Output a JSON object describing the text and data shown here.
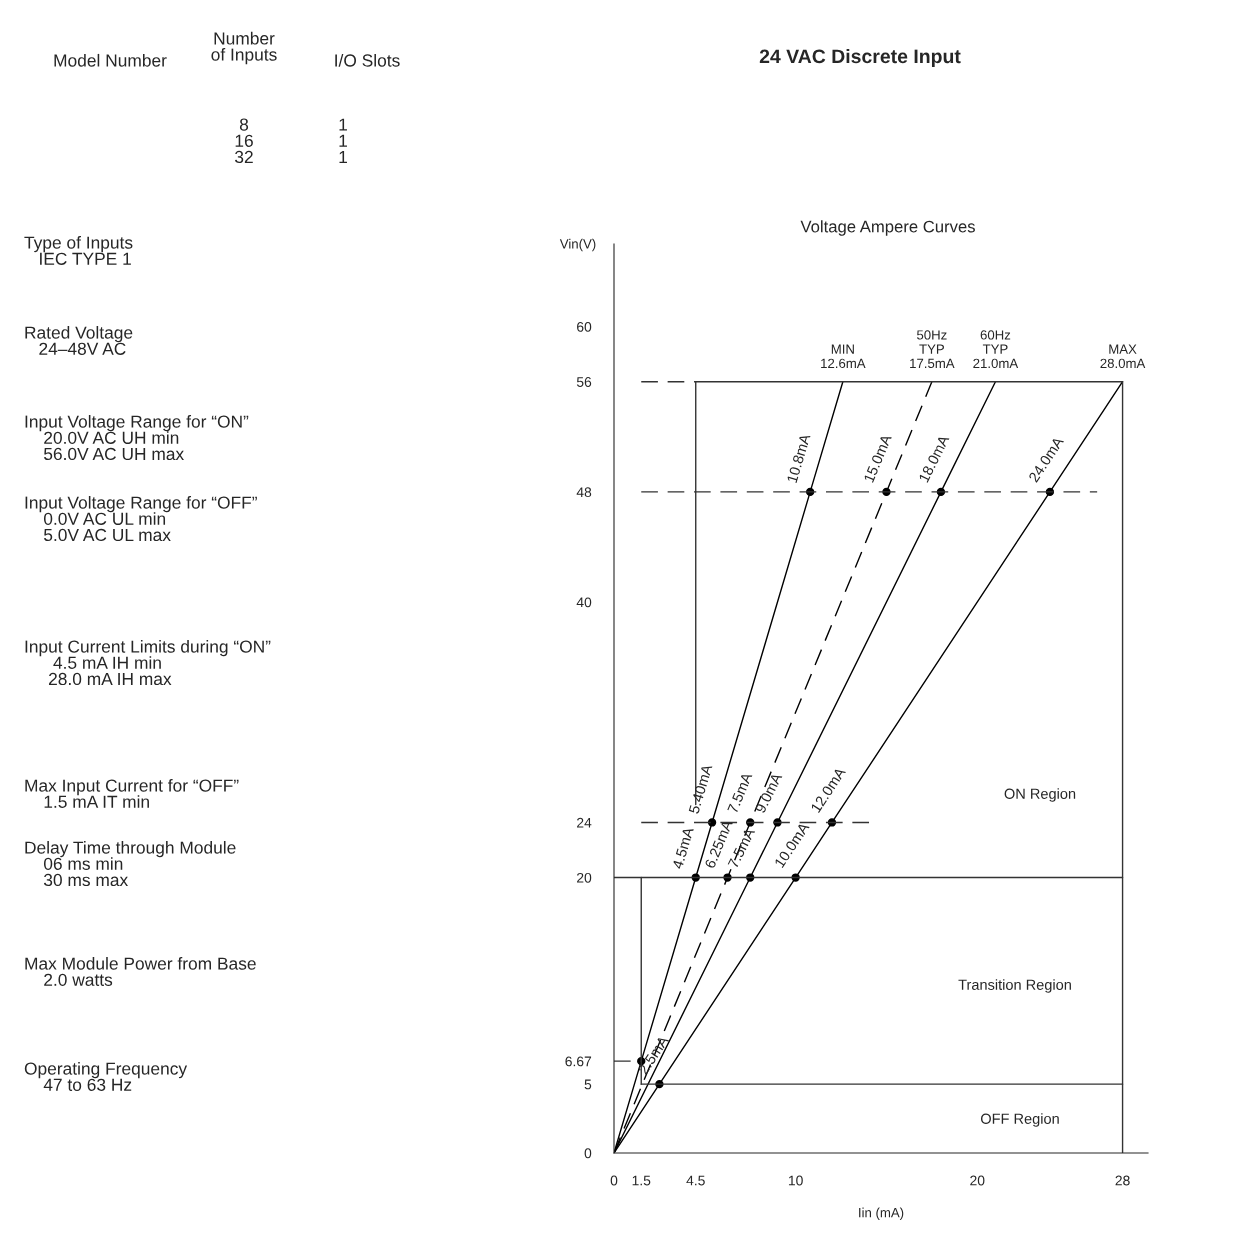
{
  "chart_data": {
    "type": "line",
    "title": "24 VAC Discrete Input",
    "subtitle": "Voltage Ampere Curves",
    "xlabel": "Iin (mA)",
    "ylabel": "Vin(V)",
    "xlim": [
      0,
      29.4
    ],
    "ylim": [
      0,
      66
    ],
    "xticks": [
      0,
      1.5,
      4.5,
      10,
      20,
      28
    ],
    "yticks": [
      0,
      5,
      6.67,
      20,
      24,
      40,
      48,
      56,
      60
    ],
    "grid": false,
    "series": [
      {
        "name": "MIN\n12.6mA",
        "color": "#000000",
        "line_style": "solid",
        "marker": "circle",
        "x": [
          0,
          1.5,
          4.5,
          5.4,
          10.8,
          12.6
        ],
        "values": [
          0,
          6.67,
          20,
          24,
          48,
          56
        ]
      },
      {
        "name": "50Hz\nTYP\n17.5mA",
        "color": "#000000",
        "line_style": "dashed",
        "marker": "circle",
        "x": [
          0,
          6.25,
          7.5,
          15,
          17.5
        ],
        "values": [
          0,
          20,
          24,
          48,
          56
        ]
      },
      {
        "name": "60Hz\nTYP\n21.0mA",
        "color": "#000000",
        "line_style": "solid",
        "marker": "circle",
        "x": [
          0,
          7.5,
          9,
          18,
          21
        ],
        "values": [
          0,
          20,
          24,
          48,
          56
        ]
      },
      {
        "name": "MAX\n28.0mA",
        "color": "#000000",
        "line_style": "solid",
        "marker": "circle",
        "x": [
          0,
          2.5,
          10,
          12,
          24,
          28
        ],
        "values": [
          0,
          5,
          20,
          24,
          48,
          56
        ]
      },
      {
        "color": "#333333",
        "line_style": "dashed",
        "x": [
          1.5,
          4.5
        ],
        "values": [
          56,
          56
        ]
      },
      {
        "color": "#333333",
        "line_style": "solid",
        "x": [
          4.5,
          28
        ],
        "values": [
          56,
          56
        ]
      },
      {
        "color": "#333333",
        "line_style": "solid",
        "x": [
          28,
          28
        ],
        "values": [
          0,
          56
        ]
      },
      {
        "color": "#333333",
        "line_style": "solid",
        "x": [
          4.5,
          4.5
        ],
        "values": [
          25.3,
          56
        ]
      },
      {
        "color": "#333333",
        "line_style": "dashed",
        "x": [
          1.5,
          26.6
        ],
        "values": [
          48,
          48
        ]
      },
      {
        "color": "#333333",
        "line_style": "dashed",
        "x": [
          1.5,
          14.2
        ],
        "values": [
          24,
          24
        ]
      },
      {
        "color": "#333333",
        "line_style": "solid",
        "x": [
          0,
          28
        ],
        "values": [
          20,
          20
        ]
      },
      {
        "color": "#333333",
        "line_style": "solid",
        "x": [
          1.5,
          1.5
        ],
        "values": [
          5,
          20
        ]
      },
      {
        "color": "#333333",
        "line_style": "dashed",
        "x": [
          0,
          1.5
        ],
        "values": [
          6.67,
          6.67
        ]
      },
      {
        "color": "#333333",
        "line_style": "solid",
        "x": [
          1.5,
          28
        ],
        "values": [
          5,
          5
        ]
      }
    ],
    "annotations": [
      {
        "text": "4.5mA",
        "x": 4.5,
        "y": 20
      },
      {
        "text": "5.40mA",
        "x": 5.4,
        "y": 24
      },
      {
        "text": "10.8mA",
        "x": 10.8,
        "y": 48
      },
      {
        "text": "6.25mA",
        "x": 6.25,
        "y": 20
      },
      {
        "text": "7.5mA",
        "x": 7.5,
        "y": 24
      },
      {
        "text": "15.0mA",
        "x": 15,
        "y": 48
      },
      {
        "text": "7.5mA",
        "x": 7.5,
        "y": 20
      },
      {
        "text": "9.0mA",
        "x": 9,
        "y": 24
      },
      {
        "text": "18.0mA",
        "x": 18,
        "y": 48
      },
      {
        "text": "2.5mA",
        "x": 2.5,
        "y": 5
      },
      {
        "text": "10.0mA",
        "x": 10,
        "y": 20
      },
      {
        "text": "12.0mA",
        "x": 12,
        "y": 24
      },
      {
        "text": "24.0mA",
        "x": 24,
        "y": 48
      },
      "ON Region",
      "Transition Region",
      "OFF Region",
      "Model Number",
      "Number\nof Inputs",
      "I/O Slots",
      "8\n16\n32",
      "1\n1\n1",
      "Type of Inputs\n   IEC TYPE 1",
      "Rated Voltage\n   24–48V AC",
      "Input Voltage Range for “ON”\n    20.0V AC UH min\n    56.0V AC UH max",
      "Input Voltage Range for “OFF”\n    0.0V AC UL min\n    5.0V AC UL max",
      "Input Current Limits during “ON”\n      4.5 mA IH min\n     28.0 mA IH max",
      "Max Input Current for “OFF”\n    1.5 mA IT min",
      "Delay Time through Module\n    06 ms min\n    30 ms max",
      "Max Module Power from Base\n    2.0 watts",
      "Operating Frequency\n    47 to 63 Hz"
    ]
  }
}
